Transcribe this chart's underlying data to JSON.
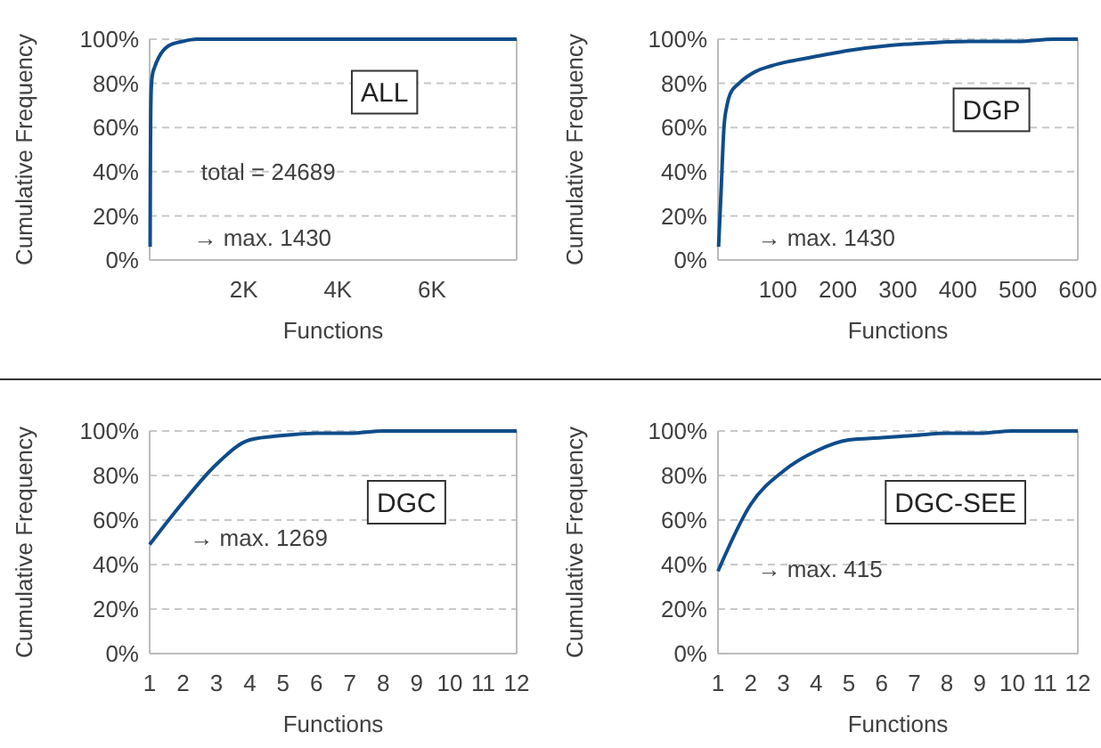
{
  "chart_data": [
    {
      "type": "line",
      "title": "ALL",
      "xlabel": "Functions",
      "ylabel": "Cumulative Frequency",
      "annotations": [
        "total = 24689",
        "→ max. 1430"
      ],
      "x": [
        10,
        15,
        20,
        30,
        40,
        60,
        100,
        200,
        400,
        700,
        1000,
        7800
      ],
      "series": [
        {
          "color": "#0f4c8a",
          "values": [
            6,
            40,
            60,
            75,
            80,
            84,
            87,
            92,
            97,
            99,
            100,
            100
          ]
        }
      ],
      "xlim": [
        0,
        7800
      ],
      "xticks": [
        {
          "value": 2000,
          "label": "2K"
        },
        {
          "value": 4000,
          "label": "4K"
        },
        {
          "value": 6000,
          "label": "6K"
        }
      ],
      "ylim": [
        0,
        100
      ],
      "yticks": [
        {
          "value": 0,
          "label": "0%"
        },
        {
          "value": 20,
          "label": "20%"
        },
        {
          "value": 40,
          "label": "40%"
        },
        {
          "value": 60,
          "label": "60%"
        },
        {
          "value": 80,
          "label": "80%"
        },
        {
          "value": 100,
          "label": "100%"
        }
      ],
      "grid": "y"
    },
    {
      "type": "line",
      "title": "DGP",
      "xlabel": "Functions",
      "ylabel": "Cumulative Frequency",
      "annotations": [
        "→ max. 1430"
      ],
      "x": [
        1,
        5,
        10,
        15,
        20,
        35,
        60,
        90,
        120,
        160,
        220,
        280,
        330,
        420,
        500,
        560,
        600
      ],
      "series": [
        {
          "color": "#0f4c8a",
          "values": [
            6,
            30,
            60,
            70,
            75,
            80,
            85,
            88,
            90,
            92,
            95,
            97,
            98,
            99,
            99,
            100,
            100
          ]
        }
      ],
      "xlim": [
        0,
        600
      ],
      "xticks": [
        100,
        200,
        300,
        400,
        500,
        600
      ],
      "ylim": [
        0,
        100
      ],
      "yticks": [
        {
          "value": 0,
          "label": "0%"
        },
        {
          "value": 20,
          "label": "20%"
        },
        {
          "value": 40,
          "label": "40%"
        },
        {
          "value": 60,
          "label": "60%"
        },
        {
          "value": 80,
          "label": "80%"
        },
        {
          "value": 100,
          "label": "100%"
        }
      ],
      "grid": "y"
    },
    {
      "type": "line",
      "title": "DGC",
      "xlabel": "Functions",
      "ylabel": "Cumulative Frequency",
      "annotations": [
        "→ max. 1269"
      ],
      "x": [
        1,
        2,
        3,
        4,
        5,
        6,
        7,
        8,
        9,
        10,
        11,
        12
      ],
      "series": [
        {
          "color": "#0f4c8a",
          "values": [
            49,
            68,
            85,
            96,
            98,
            99,
            99,
            100,
            100,
            100,
            100,
            100
          ]
        }
      ],
      "xlim": [
        1,
        12
      ],
      "xticks": [
        1,
        2,
        3,
        4,
        5,
        6,
        7,
        8,
        9,
        10,
        11,
        12
      ],
      "ylim": [
        0,
        100
      ],
      "yticks": [
        {
          "value": 0,
          "label": "0%"
        },
        {
          "value": 20,
          "label": "20%"
        },
        {
          "value": 40,
          "label": "40%"
        },
        {
          "value": 60,
          "label": "60%"
        },
        {
          "value": 80,
          "label": "80%"
        },
        {
          "value": 100,
          "label": "100%"
        }
      ],
      "grid": "y"
    },
    {
      "type": "line",
      "title": "DGC-SEE",
      "xlabel": "Functions",
      "ylabel": "Cumulative Frequency",
      "annotations": [
        "→ max. 415"
      ],
      "x": [
        1,
        2,
        3,
        4,
        5,
        6,
        7,
        8,
        9,
        10,
        11,
        12
      ],
      "series": [
        {
          "color": "#0f4c8a",
          "values": [
            37,
            67,
            82,
            91,
            96,
            97,
            98,
            99,
            99,
            100,
            100,
            100
          ]
        }
      ],
      "xlim": [
        1,
        12
      ],
      "xticks": [
        1,
        2,
        3,
        4,
        5,
        6,
        7,
        8,
        9,
        10,
        11,
        12
      ],
      "ylim": [
        0,
        100
      ],
      "yticks": [
        {
          "value": 0,
          "label": "0%"
        },
        {
          "value": 20,
          "label": "20%"
        },
        {
          "value": 40,
          "label": "40%"
        },
        {
          "value": 60,
          "label": "60%"
        },
        {
          "value": 80,
          "label": "80%"
        },
        {
          "value": 100,
          "label": "100%"
        }
      ],
      "grid": "y"
    }
  ]
}
